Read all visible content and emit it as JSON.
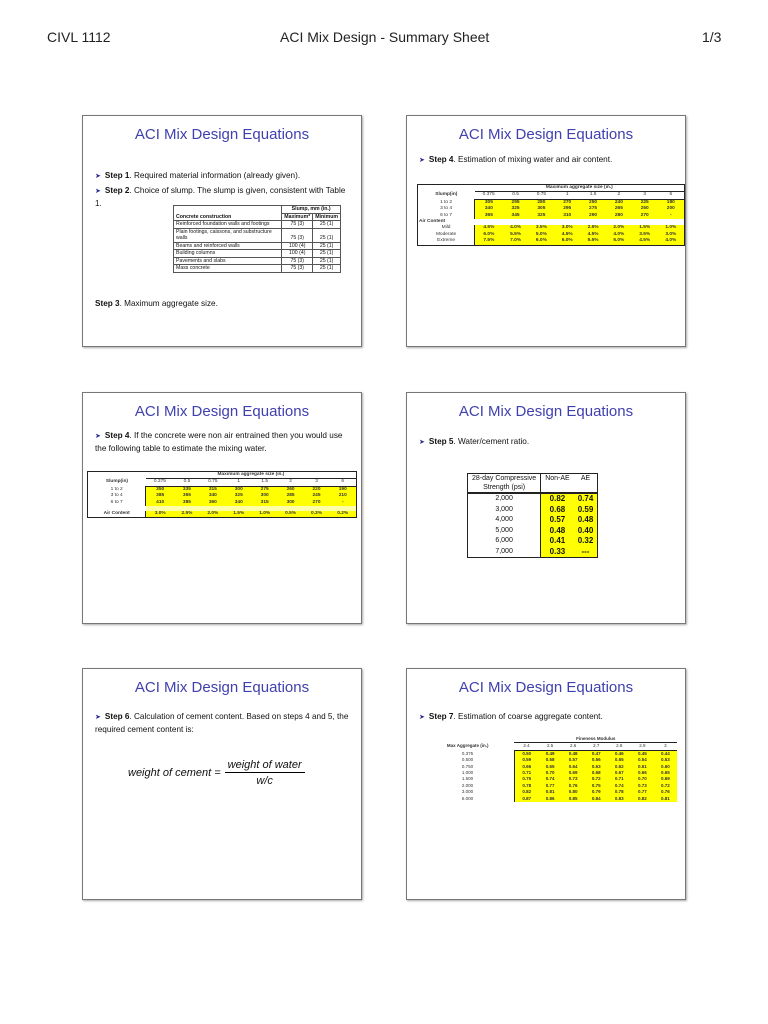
{
  "header": {
    "course": "CIVL 1112",
    "title": "ACI Mix Design - Summary Sheet",
    "page": "1/3"
  },
  "slide_title": "ACI Mix Design Equations",
  "s1": {
    "step1_b": "Step 1",
    "step1": ". Required material information (already given).",
    "step2_b": "Step 2",
    "step2": ". Choice of slump. The slump is given, consistent with Table 1.",
    "step3_b": "Step 3",
    "step3": ". Maximum aggregate size.",
    "table": {
      "col0": "Concrete construction",
      "group": "Slump, mm (in.)",
      "col1": "Maximum*",
      "col2": "Minimum",
      "rows": [
        [
          "Reinforced foundation walls and footings",
          "75 (3)",
          "25 (1)"
        ],
        [
          "Plain footings, caissons, and substructure walls",
          "75 (3)",
          "25 (1)"
        ],
        [
          "Beams and reinforced walls",
          "100 (4)",
          "25 (1)"
        ],
        [
          "Building columns",
          "100 (4)",
          "25 (1)"
        ],
        [
          "Pavements and slabs",
          "75 (3)",
          "25 (1)"
        ],
        [
          "Mass concrete",
          "75 (3)",
          "25 (1)"
        ]
      ]
    }
  },
  "s2": {
    "step_b": "Step 4",
    "step": ". Estimation of mixing water and air content.",
    "table": {
      "group": "Maximum aggregate size (in.)",
      "rowhead": "Slump(in)",
      "cols": [
        "0.375",
        "0.5",
        "0.75",
        "1",
        "1.5",
        "2",
        "3",
        "6"
      ],
      "rows": [
        [
          "1 to 2",
          "305",
          "295",
          "280",
          "270",
          "250",
          "240",
          "225",
          "180"
        ],
        [
          "3 to 4",
          "340",
          "325",
          "305",
          "295",
          "275",
          "265",
          "250",
          "200"
        ],
        [
          "6 to 7",
          "365",
          "345",
          "325",
          "310",
          "290",
          "280",
          "270",
          "-"
        ]
      ],
      "air_label": "Air Content",
      "air_rows": [
        [
          "Mild",
          "4.5%",
          "4.0%",
          "3.5%",
          "3.0%",
          "2.5%",
          "2.0%",
          "1.5%",
          "1.0%"
        ],
        [
          "Moderate",
          "6.0%",
          "5.5%",
          "5.0%",
          "4.5%",
          "4.5%",
          "4.0%",
          "3.5%",
          "3.0%"
        ],
        [
          "Extreme",
          "7.5%",
          "7.0%",
          "6.0%",
          "6.0%",
          "5.5%",
          "5.0%",
          "4.5%",
          "4.0%"
        ]
      ]
    }
  },
  "s3": {
    "step_b": "Step 4",
    "step": ". If the concrete were non air entrained then you would use the following table to estimate the mixing water.",
    "table": {
      "group": "Maximum aggregate size (in.)",
      "rowhead": "Slump(in)",
      "cols": [
        "0.375",
        "0.5",
        "0.75",
        "1",
        "1.5",
        "2",
        "3",
        "6"
      ],
      "rows": [
        [
          "1 to 2",
          "350",
          "335",
          "315",
          "300",
          "275",
          "260",
          "220",
          "190"
        ],
        [
          "3 to 4",
          "385",
          "365",
          "340",
          "325",
          "300",
          "285",
          "245",
          "210"
        ],
        [
          "6 to 7",
          "410",
          "385",
          "360",
          "340",
          "315",
          "300",
          "270",
          "-"
        ]
      ],
      "air_rows": [
        [
          "Air Content",
          "3.0%",
          "2.5%",
          "2.0%",
          "1.5%",
          "1.0%",
          "0.5%",
          "0.3%",
          "0.2%"
        ]
      ]
    }
  },
  "s4": {
    "step_b": "Step 5",
    "step": ". Water/cement ratio.",
    "table": {
      "h0a": "28-day Compressive",
      "h0b": "Strength (psi)",
      "h1": "Non-AE",
      "h2": "AE",
      "rows": [
        [
          "2,000",
          "0.82",
          "0.74"
        ],
        [
          "3,000",
          "0.68",
          "0.59"
        ],
        [
          "4,000",
          "0.57",
          "0.48"
        ],
        [
          "5,000",
          "0.48",
          "0.40"
        ],
        [
          "6,000",
          "0.41",
          "0.32"
        ],
        [
          "7,000",
          "0.33",
          "---"
        ]
      ]
    }
  },
  "s5": {
    "step_b": "Step 6",
    "step": ". Calculation of cement content. Based on steps 4 and 5, the required cement content is:",
    "eq_lhs": "weight of cement =",
    "eq_num": "weight of water",
    "eq_den": "w/c"
  },
  "s6": {
    "step_b": "Step 7",
    "step": ". Estimation of coarse aggregate content.",
    "table": {
      "group": "Fineness Modulus",
      "rowhead": "Max Aggregate (in.)",
      "cols": [
        "2.4",
        "2.5",
        "2.6",
        "2.7",
        "2.8",
        "2.9",
        "3"
      ],
      "rows": [
        [
          "0.375",
          "0.50",
          "0.49",
          "0.48",
          "0.47",
          "0.46",
          "0.45",
          "0.44"
        ],
        [
          "0.500",
          "0.59",
          "0.58",
          "0.57",
          "0.56",
          "0.55",
          "0.54",
          "0.53"
        ],
        [
          "0.750",
          "0.66",
          "0.65",
          "0.64",
          "0.63",
          "0.62",
          "0.61",
          "0.60"
        ],
        [
          "1.000",
          "0.71",
          "0.70",
          "0.69",
          "0.68",
          "0.67",
          "0.66",
          "0.65"
        ],
        [
          "1.500",
          "0.75",
          "0.74",
          "0.73",
          "0.72",
          "0.71",
          "0.70",
          "0.69"
        ],
        [
          "2.000",
          "0.78",
          "0.77",
          "0.76",
          "0.75",
          "0.74",
          "0.73",
          "0.72"
        ],
        [
          "3.000",
          "0.82",
          "0.81",
          "0.80",
          "0.79",
          "0.78",
          "0.77",
          "0.76"
        ],
        [
          "6.000",
          "0.87",
          "0.86",
          "0.85",
          "0.84",
          "0.83",
          "0.82",
          "0.81"
        ]
      ]
    }
  },
  "colors": {
    "title": "#4040b0",
    "highlight": "#ffff00"
  }
}
